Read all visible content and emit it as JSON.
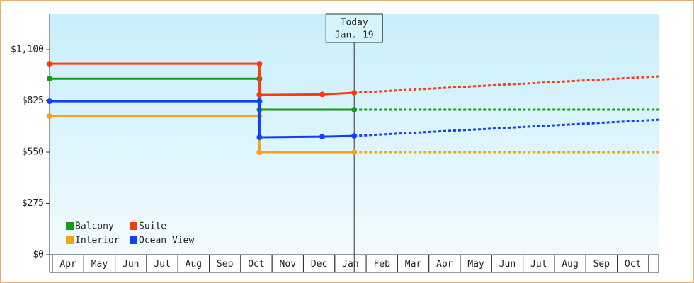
{
  "chart_data": {
    "type": "line",
    "categories": [
      "Apr",
      "May",
      "Jun",
      "Jul",
      "Aug",
      "Sep",
      "Oct",
      "Nov",
      "Dec",
      "Jan",
      "Feb",
      "Mar",
      "Apr",
      "May",
      "Jun",
      "Jul",
      "Aug",
      "Sep",
      "Oct"
    ],
    "xlim": [
      -0.09,
      19.32
    ],
    "ylim": [
      0,
      1290
    ],
    "yticks": [
      {
        "value": 0,
        "label": "$0"
      },
      {
        "value": 275,
        "label": "$275"
      },
      {
        "value": 550,
        "label": "$550"
      },
      {
        "value": 825,
        "label": "$825"
      },
      {
        "value": 1100,
        "label": "$1,100"
      }
    ],
    "annotation": {
      "lines": [
        "Today",
        "Jan. 19"
      ],
      "x": 9.62
    },
    "series": [
      {
        "name": "Balcony",
        "color": "#1a9a1a",
        "x": [
          -0.09,
          6.6,
          6.6,
          9.62
        ],
        "values": [
          944,
          944,
          778,
          778
        ],
        "forecast": {
          "x": [
            9.62,
            19.32
          ],
          "values": [
            778,
            778
          ]
        }
      },
      {
        "name": "Suite",
        "color": "#ff3a10",
        "x": [
          -0.09,
          6.6,
          6.6,
          8.6,
          9.62
        ],
        "values": [
          1024,
          1024,
          857,
          860,
          869
        ],
        "forecast": {
          "x": [
            9.62,
            19.32
          ],
          "values": [
            869,
            956
          ]
        }
      },
      {
        "name": "Interior",
        "color": "#f5a31a",
        "x": [
          -0.09,
          6.6,
          6.6,
          9.62
        ],
        "values": [
          743,
          743,
          550,
          550
        ],
        "forecast": {
          "x": [
            9.62,
            19.32
          ],
          "values": [
            550,
            550
          ]
        }
      },
      {
        "name": "Ocean View",
        "color": "#1040ff",
        "x": [
          -0.09,
          6.6,
          6.6,
          8.6,
          9.62
        ],
        "values": [
          823,
          823,
          630,
          633,
          637
        ],
        "forecast": {
          "x": [
            9.62,
            19.32
          ],
          "values": [
            637,
            724
          ]
        }
      }
    ]
  }
}
